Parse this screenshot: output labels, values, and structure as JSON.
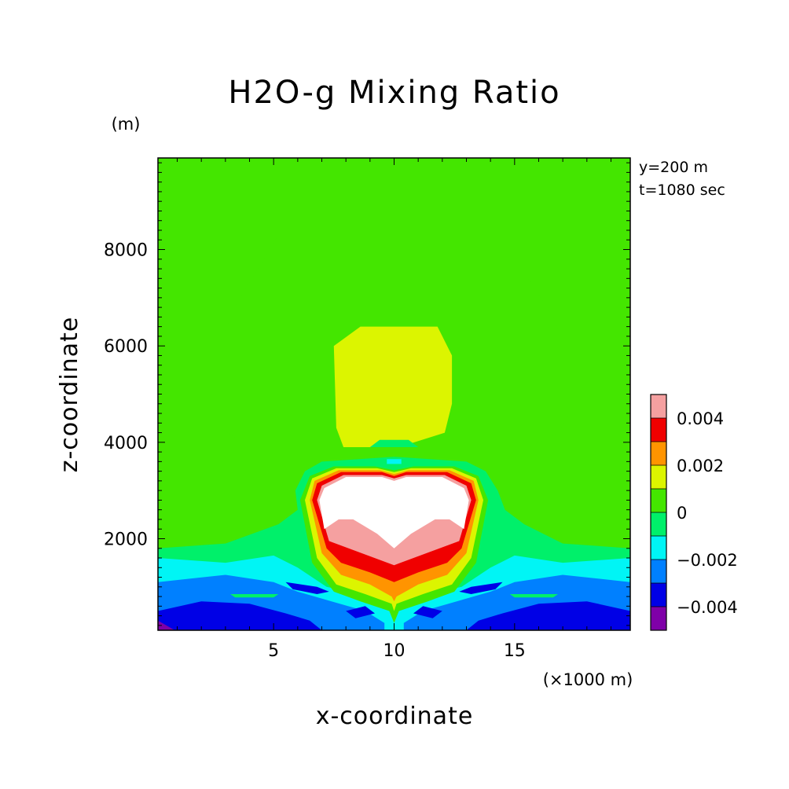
{
  "chart_data": {
    "type": "heatmap",
    "title": "H2O-g Mixing Ratio",
    "xlabel": "x-coordinate",
    "ylabel": "z-coordinate",
    "x_unit": "(×1000 m)",
    "y_unit": "(m)",
    "annotations": [
      "y=200 m",
      "t=1080 sec"
    ],
    "xlim": [
      0.2,
      19.8
    ],
    "ylim": [
      100,
      9900
    ],
    "x_ticks": [
      5,
      10,
      15
    ],
    "y_ticks": [
      2000,
      4000,
      6000,
      8000
    ],
    "x_tick_labels": [
      "5",
      "10",
      "15"
    ],
    "y_tick_labels": [
      "2000",
      "4000",
      "6000",
      "8000"
    ],
    "grid": false,
    "colorbar": {
      "placement": "right",
      "levels": [
        -0.005,
        -0.004,
        -0.003,
        -0.002,
        -0.001,
        0,
        0.001,
        0.002,
        0.003,
        0.004,
        0.005
      ],
      "colors": [
        "#7f00a8",
        "#0000e6",
        "#0080ff",
        "#00f5f5",
        "#00f06a",
        "#44e600",
        "#dcf500",
        "#ff9400",
        "#f00000",
        "#f5a0a0"
      ],
      "over_color": "#ffffff",
      "tick_values": [
        -0.004,
        -0.002,
        0,
        0.002,
        0.004
      ],
      "tick_labels": [
        "−0.004",
        "−0.002",
        "0",
        "0.002",
        "0.004"
      ]
    },
    "background_value": 0,
    "regions": [
      {
        "value": 0.0005,
        "polygon": [
          [
            5.4,
            9600
          ],
          [
            14.6,
            9600
          ],
          [
            14.8,
            9200
          ],
          [
            14.9,
            8200
          ],
          [
            15.3,
            7600
          ],
          [
            16.6,
            6600
          ],
          [
            17.4,
            5600
          ],
          [
            17.4,
            4700
          ],
          [
            16.8,
            4200
          ],
          [
            15.6,
            3900
          ],
          [
            14.6,
            3800
          ],
          [
            5.4,
            3800
          ],
          [
            4.0,
            3900
          ],
          [
            2.8,
            4300
          ],
          [
            2.4,
            5000
          ],
          [
            2.7,
            6000
          ],
          [
            3.6,
            7000
          ],
          [
            4.6,
            7800
          ],
          [
            5.3,
            8400
          ],
          [
            5.3,
            9400
          ]
        ]
      },
      {
        "value": 0.0015,
        "polygon": [
          [
            7.5,
            6000
          ],
          [
            8.6,
            6400
          ],
          [
            11.8,
            6400
          ],
          [
            12.4,
            5800
          ],
          [
            12.4,
            4800
          ],
          [
            12.1,
            4200
          ],
          [
            10.2,
            3900
          ],
          [
            7.9,
            3900
          ],
          [
            7.6,
            4300
          ]
        ]
      },
      {
        "value": -0.0005,
        "polygon": [
          [
            0.2,
            1800
          ],
          [
            3.0,
            1900
          ],
          [
            5.2,
            2300
          ],
          [
            6.0,
            2600
          ],
          [
            5.9,
            3000
          ],
          [
            6.3,
            3400
          ],
          [
            7.0,
            3600
          ],
          [
            10,
            3700
          ],
          [
            13.0,
            3600
          ],
          [
            13.8,
            3400
          ],
          [
            14.3,
            3000
          ],
          [
            14.6,
            2600
          ],
          [
            15.4,
            2300
          ],
          [
            17.0,
            1900
          ],
          [
            19.8,
            1800
          ],
          [
            19.8,
            100
          ],
          [
            0.2,
            100
          ]
        ]
      },
      {
        "value": -0.0015,
        "polygon": [
          [
            0.2,
            1600
          ],
          [
            3.0,
            1500
          ],
          [
            5.0,
            1650
          ],
          [
            6.0,
            1400
          ],
          [
            7.2,
            1000
          ],
          [
            10,
            700
          ],
          [
            12.8,
            1000
          ],
          [
            14.0,
            1400
          ],
          [
            15.0,
            1650
          ],
          [
            17.0,
            1500
          ],
          [
            19.8,
            1600
          ],
          [
            19.8,
            100
          ],
          [
            0.2,
            100
          ]
        ]
      },
      {
        "value": -0.0025,
        "polygon": [
          [
            0.2,
            1100
          ],
          [
            3.0,
            1250
          ],
          [
            5.0,
            1100
          ],
          [
            6.0,
            900
          ],
          [
            7.4,
            700
          ],
          [
            8.8,
            500
          ],
          [
            9.6,
            250
          ],
          [
            9.6,
            100
          ],
          [
            0.2,
            100
          ]
        ]
      },
      {
        "value": -0.0025,
        "polygon": [
          [
            19.8,
            1100
          ],
          [
            17.0,
            1250
          ],
          [
            15.0,
            1100
          ],
          [
            14.0,
            900
          ],
          [
            12.6,
            700
          ],
          [
            11.2,
            500
          ],
          [
            10.4,
            250
          ],
          [
            10.4,
            100
          ],
          [
            19.8,
            100
          ]
        ]
      },
      {
        "value": -0.0035,
        "polygon": [
          [
            0.2,
            500
          ],
          [
            2.0,
            700
          ],
          [
            4.0,
            650
          ],
          [
            5.5,
            450
          ],
          [
            6.5,
            300
          ],
          [
            7.0,
            100
          ],
          [
            0.2,
            100
          ]
        ]
      },
      {
        "value": -0.0035,
        "polygon": [
          [
            19.8,
            500
          ],
          [
            18.0,
            700
          ],
          [
            16.0,
            650
          ],
          [
            14.5,
            450
          ],
          [
            13.5,
            300
          ],
          [
            13.0,
            100
          ],
          [
            19.8,
            100
          ]
        ]
      },
      {
        "value": -0.0035,
        "polygon": [
          [
            5.5,
            1100
          ],
          [
            6.8,
            1000
          ],
          [
            7.3,
            900
          ],
          [
            6.8,
            850
          ],
          [
            5.8,
            950
          ]
        ]
      },
      {
        "value": -0.0035,
        "polygon": [
          [
            14.5,
            1100
          ],
          [
            13.2,
            1000
          ],
          [
            12.7,
            900
          ],
          [
            13.2,
            850
          ],
          [
            14.2,
            950
          ]
        ]
      },
      {
        "value": -0.0035,
        "polygon": [
          [
            8.0,
            500
          ],
          [
            8.8,
            600
          ],
          [
            9.2,
            450
          ],
          [
            8.4,
            350
          ]
        ]
      },
      {
        "value": -0.0035,
        "polygon": [
          [
            12.0,
            500
          ],
          [
            11.2,
            600
          ],
          [
            10.8,
            450
          ],
          [
            11.6,
            350
          ]
        ]
      },
      {
        "value": -0.0045,
        "polygon": [
          [
            0.2,
            100
          ],
          [
            0.9,
            100
          ],
          [
            0.2,
            300
          ]
        ]
      },
      {
        "value": -0.0005,
        "polygon": [
          [
            3.2,
            850
          ],
          [
            5.2,
            850
          ],
          [
            5.0,
            780
          ],
          [
            3.4,
            780
          ]
        ]
      },
      {
        "value": -0.0005,
        "polygon": [
          [
            16.8,
            850
          ],
          [
            14.8,
            850
          ],
          [
            15.0,
            780
          ],
          [
            16.6,
            780
          ]
        ]
      },
      {
        "value": -0.0005,
        "polygon": [
          [
            9.0,
            3900
          ],
          [
            11.0,
            3900
          ],
          [
            10.6,
            4050
          ],
          [
            9.4,
            4050
          ]
        ]
      },
      {
        "value": -0.0015,
        "polygon": [
          [
            9.7,
            3650
          ],
          [
            10.3,
            3650
          ],
          [
            10.3,
            3550
          ],
          [
            9.7,
            3550
          ]
        ]
      },
      {
        "value": 0.0005,
        "polygon": [
          [
            6.1,
            2800
          ],
          [
            6.5,
            3300
          ],
          [
            7.5,
            3500
          ],
          [
            9.2,
            3500
          ],
          [
            10,
            3420
          ],
          [
            10.8,
            3500
          ],
          [
            12.5,
            3500
          ],
          [
            13.5,
            3300
          ],
          [
            13.9,
            2800
          ],
          [
            13.4,
            1500
          ],
          [
            12.5,
            900
          ],
          [
            11.4,
            700
          ],
          [
            10.2,
            500
          ],
          [
            10,
            250
          ],
          [
            9.8,
            500
          ],
          [
            8.6,
            700
          ],
          [
            7.5,
            900
          ],
          [
            6.6,
            1500
          ]
        ]
      },
      {
        "value": 0.0015,
        "polygon": [
          [
            6.3,
            2800
          ],
          [
            6.6,
            3250
          ],
          [
            7.6,
            3460
          ],
          [
            9.3,
            3460
          ],
          [
            10,
            3380
          ],
          [
            10.7,
            3460
          ],
          [
            12.4,
            3460
          ],
          [
            13.4,
            3250
          ],
          [
            13.7,
            2800
          ],
          [
            13.2,
            1600
          ],
          [
            12.4,
            1050
          ],
          [
            11.2,
            850
          ],
          [
            10.1,
            650
          ],
          [
            10,
            500
          ],
          [
            9.9,
            650
          ],
          [
            8.8,
            850
          ],
          [
            7.6,
            1050
          ],
          [
            6.8,
            1600
          ]
        ]
      },
      {
        "value": 0.0025,
        "polygon": [
          [
            6.5,
            2800
          ],
          [
            6.7,
            3200
          ],
          [
            7.7,
            3420
          ],
          [
            9.4,
            3420
          ],
          [
            10,
            3340
          ],
          [
            10.6,
            3420
          ],
          [
            12.3,
            3420
          ],
          [
            13.3,
            3200
          ],
          [
            13.5,
            2800
          ],
          [
            13.0,
            1700
          ],
          [
            12.2,
            1250
          ],
          [
            11.0,
            1050
          ],
          [
            10.1,
            800
          ],
          [
            10,
            700
          ],
          [
            9.9,
            800
          ],
          [
            9.0,
            1050
          ],
          [
            7.8,
            1250
          ],
          [
            7.0,
            1700
          ]
        ]
      },
      {
        "value": 0.0035,
        "polygon": [
          [
            6.6,
            2800
          ],
          [
            6.8,
            3150
          ],
          [
            7.8,
            3380
          ],
          [
            9.5,
            3380
          ],
          [
            10,
            3300
          ],
          [
            10.5,
            3380
          ],
          [
            12.2,
            3380
          ],
          [
            13.2,
            3150
          ],
          [
            13.4,
            2800
          ],
          [
            12.8,
            1800
          ],
          [
            12.2,
            1500
          ],
          [
            11.0,
            1300
          ],
          [
            10,
            1100
          ],
          [
            9.0,
            1300
          ],
          [
            7.8,
            1500
          ],
          [
            7.2,
            1800
          ]
        ]
      },
      {
        "value": 0.0045,
        "polygon": [
          [
            6.8,
            2800
          ],
          [
            7.0,
            3100
          ],
          [
            7.9,
            3320
          ],
          [
            9.5,
            3320
          ],
          [
            10,
            3250
          ],
          [
            10.5,
            3320
          ],
          [
            12.1,
            3320
          ],
          [
            13.0,
            3100
          ],
          [
            13.2,
            2800
          ],
          [
            12.7,
            1950
          ],
          [
            10.0,
            1450
          ],
          [
            7.3,
            1950
          ]
        ]
      },
      {
        "value": 0.0055,
        "polygon": [
          [
            6.9,
            2800
          ],
          [
            7.1,
            3050
          ],
          [
            8.0,
            3280
          ],
          [
            9.5,
            3280
          ],
          [
            10,
            3200
          ],
          [
            10.5,
            3280
          ],
          [
            12.0,
            3280
          ],
          [
            12.9,
            3050
          ],
          [
            13.1,
            2800
          ],
          [
            12.9,
            2200
          ],
          [
            12.3,
            2400
          ],
          [
            11.7,
            2400
          ],
          [
            10.7,
            2100
          ],
          [
            10,
            1800
          ],
          [
            9.3,
            2100
          ],
          [
            8.3,
            2400
          ],
          [
            7.7,
            2400
          ],
          [
            7.1,
            2200
          ]
        ]
      }
    ]
  }
}
